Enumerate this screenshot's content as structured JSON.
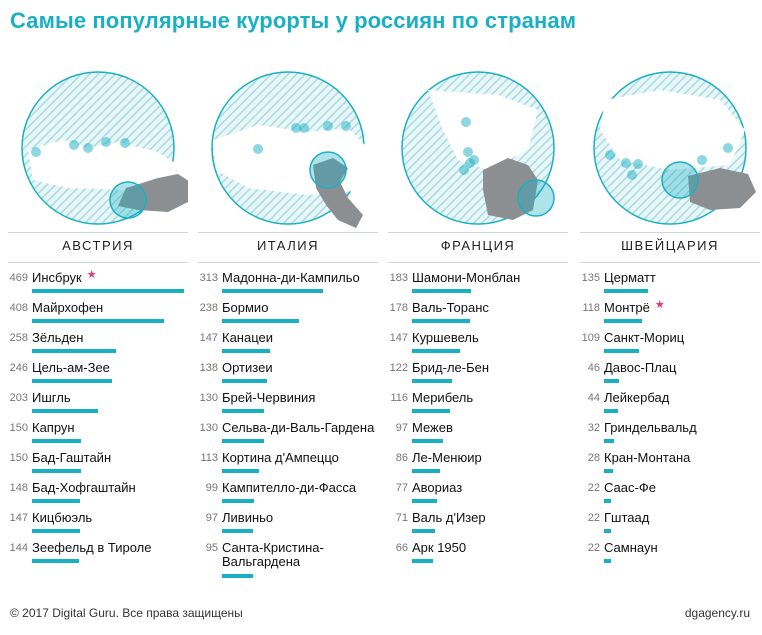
{
  "title": "Самые популярные курорты у россиян по странам",
  "footer": {
    "copyright": "© 2017 Digital Guru. Все права защищены",
    "site": "dgagency.ru"
  },
  "colors": {
    "accent": "#1ab0c4",
    "star": "#e8327a",
    "country_fill": "#8c8f92",
    "hatch": "#a9dbe3"
  },
  "chart_data": [
    {
      "type": "bar",
      "title": "АВСТРИЯ",
      "categories": [
        "Инсбрук",
        "Майрхофен",
        "Зёльден",
        "Цель-ам-Зее",
        "Ишгль",
        "Капрун",
        "Бад-Гаштайн",
        "Бад-Хофгаштайн",
        "Кицбюэль",
        "Зеефельд в Тироле"
      ],
      "values": [
        469,
        408,
        258,
        246,
        203,
        150,
        150,
        148,
        147,
        144
      ],
      "highlight": "Инсбрук"
    },
    {
      "type": "bar",
      "title": "ИТАЛИЯ",
      "categories": [
        "Мадонна-ди-Кампильо",
        "Бормио",
        "Канацеи",
        "Ортизеи",
        "Брей-Червиния",
        "Сельва-ди-Валь-Гардена",
        "Кортина д'Ампеццо",
        "Кампителло-ди-Фасса",
        "Ливиньо",
        "Санта-Кристина-Вальгардена"
      ],
      "values": [
        313,
        238,
        147,
        138,
        130,
        130,
        113,
        99,
        97,
        95
      ]
    },
    {
      "type": "bar",
      "title": "ФРАНЦИЯ",
      "categories": [
        "Шамони-Монблан",
        "Валь-Торанс",
        "Куршевель",
        "Брид-ле-Бен",
        "Мерибель",
        "Межев",
        "Ле-Менюир",
        "Авориаз",
        "Валь д'Изер",
        "Арк 1950"
      ],
      "values": [
        183,
        178,
        147,
        122,
        116,
        97,
        86,
        77,
        71,
        66
      ]
    },
    {
      "type": "bar",
      "title": "ШВЕЙЦАРИЯ",
      "categories": [
        "Церматт",
        "Монтрё",
        "Санкт-Мориц",
        "Давос-Плац",
        "Лейкербад",
        "Гриндельвальд",
        "Кран-Монтана",
        "Саас-Фе",
        "Гштаад",
        "Самнаун"
      ],
      "values": [
        135,
        118,
        109,
        46,
        44,
        32,
        28,
        22,
        22,
        22
      ],
      "highlight": "Монтрё"
    }
  ]
}
